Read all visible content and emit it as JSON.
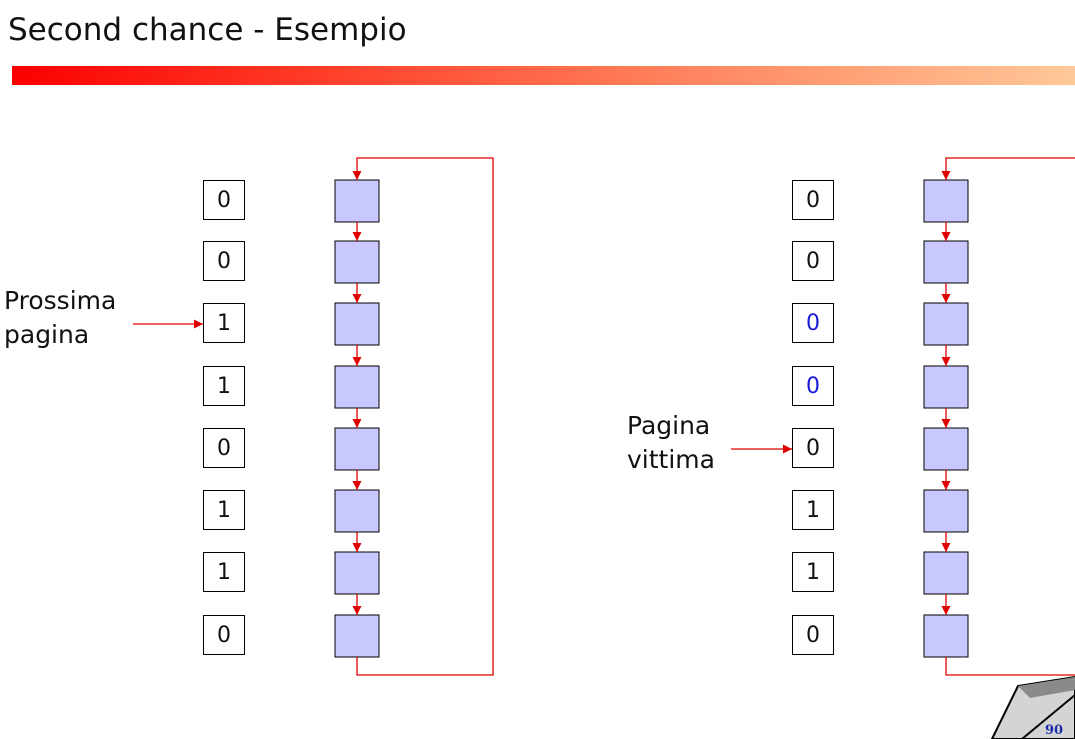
{
  "title": "Second chance - Esempio",
  "colors": {
    "page_fill": "#c8c8ff",
    "link": "#e00000",
    "changed_bit": "#1a1adc"
  },
  "left_panel": {
    "label_lines": [
      "Prossima",
      "pagina"
    ],
    "pointer_index": 2,
    "bits": [
      "0",
      "0",
      "1",
      "1",
      "0",
      "1",
      "1",
      "0"
    ],
    "changed": [
      false,
      false,
      false,
      false,
      false,
      false,
      false,
      false
    ]
  },
  "right_panel": {
    "label_lines": [
      "Pagina",
      "vittima"
    ],
    "pointer_index": 4,
    "bits": [
      "0",
      "0",
      "0",
      "0",
      "0",
      "1",
      "1",
      "0"
    ],
    "changed": [
      false,
      false,
      true,
      true,
      false,
      false,
      false,
      false
    ]
  },
  "page_number": "90"
}
